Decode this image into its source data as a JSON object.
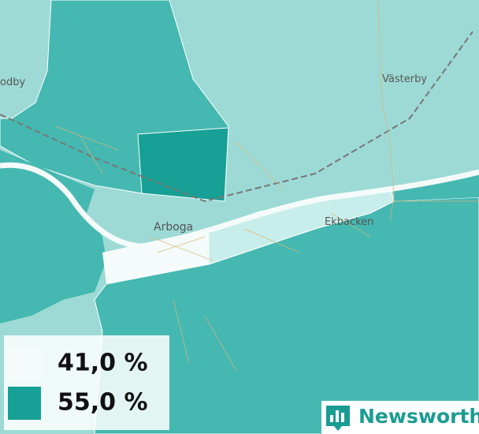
{
  "places": [
    "odby",
    "Västerby",
    "Arboga",
    "Ekbacken"
  ],
  "legend": [
    {
      "label": "41,0 %",
      "color": "#f4fbfa"
    },
    {
      "label": "55,0 %",
      "color": "#16a096"
    }
  ],
  "brand": "Newsworthy"
}
